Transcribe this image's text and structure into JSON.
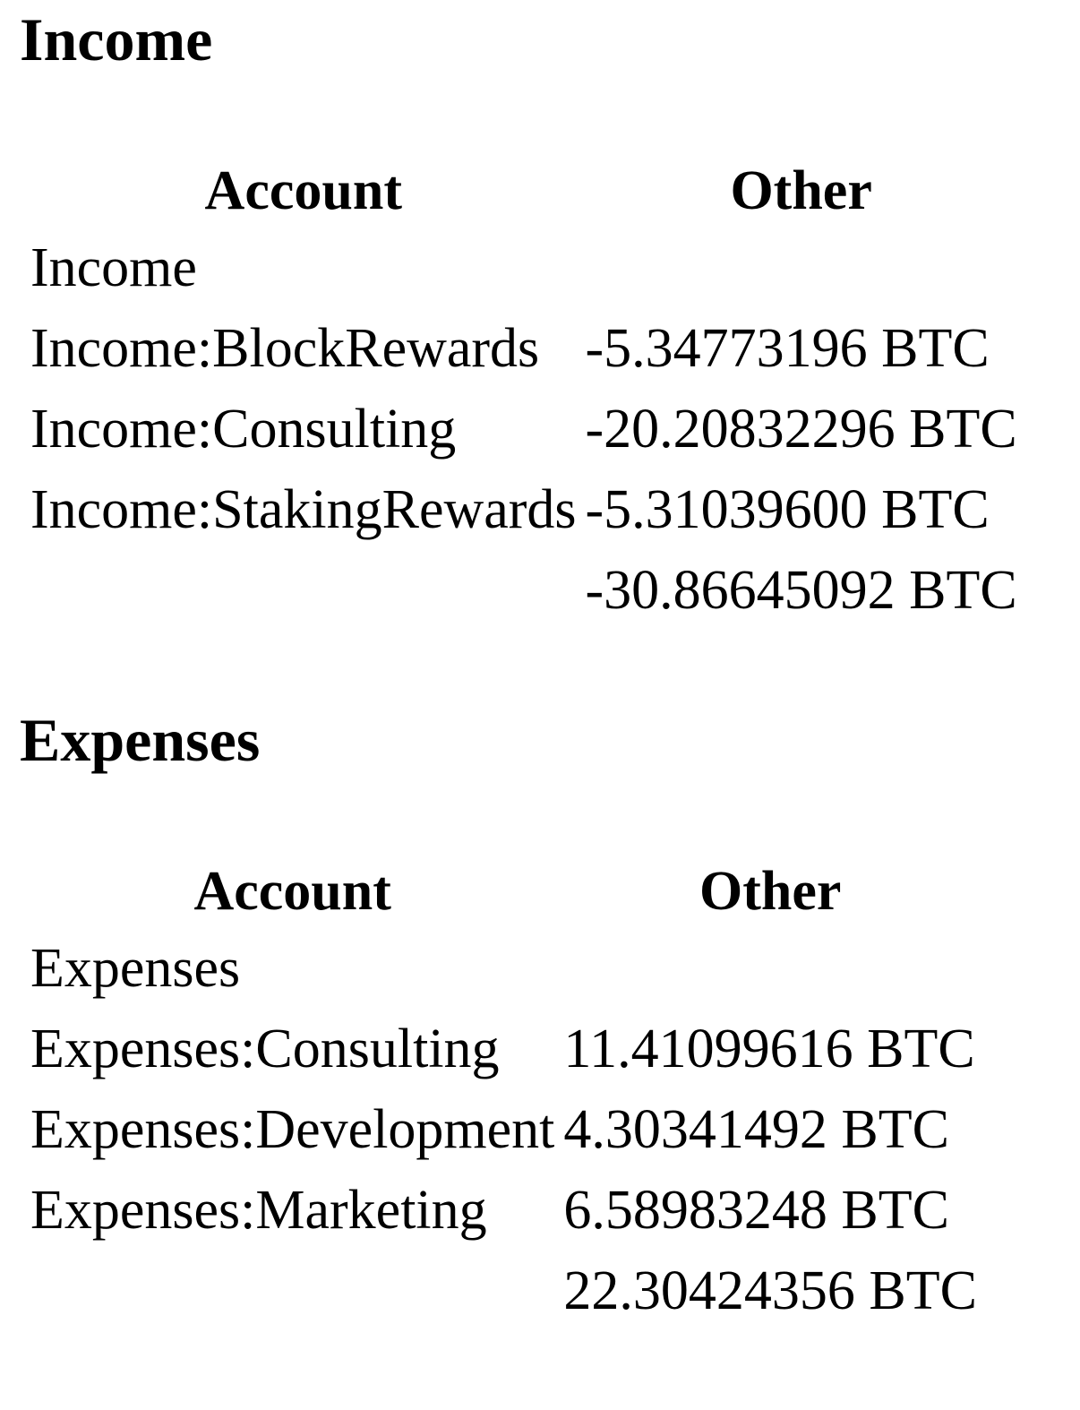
{
  "sections": [
    {
      "title": "Income",
      "columns": [
        "Account",
        "Other"
      ],
      "rows": [
        {
          "account": "Income",
          "amount": ""
        },
        {
          "account": "Income:BlockRewards",
          "amount": "-5.34773196 BTC"
        },
        {
          "account": "Income:Consulting",
          "amount": "-20.20832296 BTC"
        },
        {
          "account": "Income:StakingRewards",
          "amount": "-5.31039600 BTC"
        }
      ],
      "total": {
        "account": "",
        "amount": "-30.86645092 BTC"
      }
    },
    {
      "title": "Expenses",
      "columns": [
        "Account",
        "Other"
      ],
      "rows": [
        {
          "account": "Expenses",
          "amount": ""
        },
        {
          "account": "Expenses:Consulting",
          "amount": "11.41099616 BTC"
        },
        {
          "account": "Expenses:Development",
          "amount": "4.30341492 BTC"
        },
        {
          "account": "Expenses:Marketing",
          "amount": "6.58983248 BTC"
        }
      ],
      "total": {
        "account": "",
        "amount": "22.30424356 BTC"
      }
    }
  ]
}
